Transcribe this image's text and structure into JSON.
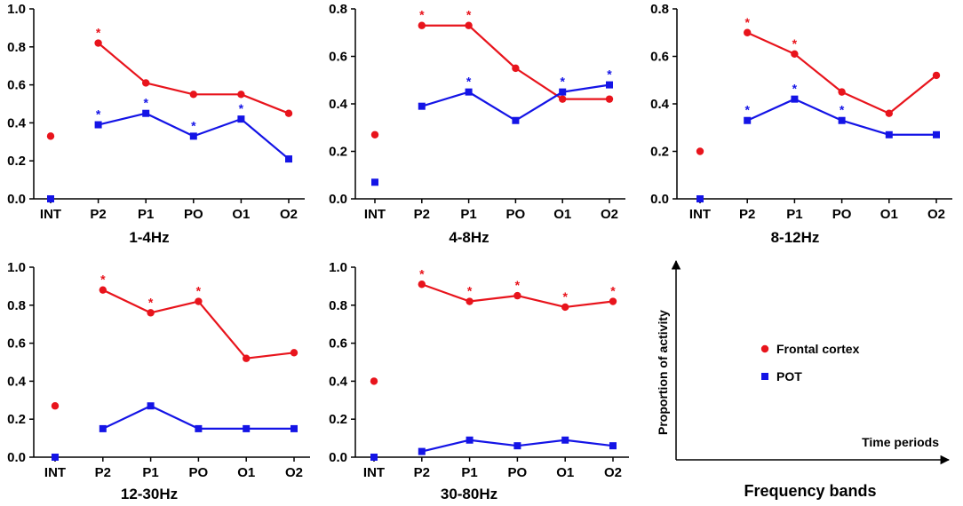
{
  "chart_data": [
    {
      "type": "line",
      "title": "1-4Hz",
      "categories": [
        "INT",
        "P2",
        "P1",
        "PO",
        "O1",
        "O2"
      ],
      "ylim": [
        0,
        1.0
      ],
      "yticks": [
        "0.0",
        "0.2",
        "0.4",
        "0.6",
        "0.8",
        "1.0"
      ],
      "series": [
        {
          "name": "Frontal cortex",
          "values": [
            0.33,
            0.82,
            0.61,
            0.55,
            0.55,
            0.45
          ],
          "significant": [
            false,
            true,
            false,
            false,
            false,
            false
          ]
        },
        {
          "name": "POT",
          "values": [
            0.0,
            0.39,
            0.45,
            0.33,
            0.42,
            0.21
          ],
          "significant": [
            false,
            true,
            true,
            true,
            true,
            false
          ]
        }
      ]
    },
    {
      "type": "line",
      "title": "4-8Hz",
      "categories": [
        "INT",
        "P2",
        "P1",
        "PO",
        "O1",
        "O2"
      ],
      "ylim": [
        0,
        0.8
      ],
      "yticks": [
        "0.0",
        "0.2",
        "0.4",
        "0.6",
        "0.8"
      ],
      "series": [
        {
          "name": "Frontal cortex",
          "values": [
            0.27,
            0.73,
            0.73,
            0.55,
            0.42,
            0.42
          ],
          "significant": [
            false,
            true,
            true,
            false,
            false,
            false
          ]
        },
        {
          "name": "POT",
          "values": [
            0.07,
            0.39,
            0.45,
            0.33,
            0.45,
            0.48
          ],
          "significant": [
            false,
            false,
            true,
            false,
            true,
            true
          ]
        }
      ]
    },
    {
      "type": "line",
      "title": "8-12Hz",
      "categories": [
        "INT",
        "P2",
        "P1",
        "PO",
        "O1",
        "O2"
      ],
      "ylim": [
        0,
        0.8
      ],
      "yticks": [
        "0.0",
        "0.2",
        "0.4",
        "0.6",
        "0.8"
      ],
      "series": [
        {
          "name": "Frontal cortex",
          "values": [
            0.2,
            0.7,
            0.61,
            0.45,
            0.36,
            0.52
          ],
          "significant": [
            false,
            true,
            true,
            false,
            false,
            false
          ]
        },
        {
          "name": "POT",
          "values": [
            0.0,
            0.33,
            0.42,
            0.33,
            0.27,
            0.27
          ],
          "significant": [
            false,
            true,
            true,
            true,
            false,
            false
          ]
        }
      ]
    },
    {
      "type": "line",
      "title": "12-30Hz",
      "categories": [
        "INT",
        "P2",
        "P1",
        "PO",
        "O1",
        "O2"
      ],
      "ylim": [
        0,
        1.0
      ],
      "yticks": [
        "0.0",
        "0.2",
        "0.4",
        "0.6",
        "0.8",
        "1.0"
      ],
      "series": [
        {
          "name": "Frontal cortex",
          "values": [
            0.27,
            0.88,
            0.76,
            0.82,
            0.52,
            0.55
          ],
          "significant": [
            false,
            true,
            true,
            true,
            false,
            false
          ]
        },
        {
          "name": "POT",
          "values": [
            0.0,
            0.15,
            0.27,
            0.15,
            0.15,
            0.15
          ],
          "significant": [
            false,
            false,
            false,
            false,
            false,
            false
          ]
        }
      ]
    },
    {
      "type": "line",
      "title": "30-80Hz",
      "categories": [
        "INT",
        "P2",
        "P1",
        "PO",
        "O1",
        "O2"
      ],
      "ylim": [
        0,
        1.0
      ],
      "yticks": [
        "0.0",
        "0.2",
        "0.4",
        "0.6",
        "0.8",
        "1.0"
      ],
      "series": [
        {
          "name": "Frontal cortex",
          "values": [
            0.4,
            0.91,
            0.82,
            0.85,
            0.79,
            0.82
          ],
          "significant": [
            false,
            true,
            true,
            true,
            true,
            true
          ]
        },
        {
          "name": "POT",
          "values": [
            0.0,
            0.03,
            0.09,
            0.06,
            0.09,
            0.06
          ],
          "significant": [
            false,
            false,
            false,
            false,
            false,
            false
          ]
        }
      ]
    }
  ],
  "significance_marker": "*",
  "colors": {
    "frontal": "#e8141c",
    "pot": "#1414e6",
    "axis": "#000000"
  },
  "key": {
    "y_axis_label": "Proportion of activity",
    "x_axis_label": "Time periods",
    "title": "Frequency bands",
    "entries": [
      {
        "label": "Frontal cortex",
        "color": "#e8141c",
        "marker": "circle"
      },
      {
        "label": "POT",
        "color": "#1414e6",
        "marker": "square"
      }
    ]
  }
}
